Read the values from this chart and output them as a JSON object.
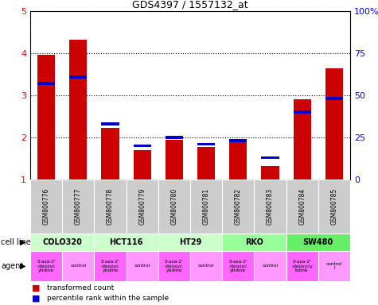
{
  "title": "GDS4397 / 1557132_at",
  "samples": [
    "GSM800776",
    "GSM800777",
    "GSM800778",
    "GSM800779",
    "GSM800780",
    "GSM800781",
    "GSM800782",
    "GSM800783",
    "GSM800784",
    "GSM800785"
  ],
  "transformed_count": [
    3.97,
    4.32,
    2.22,
    1.7,
    1.95,
    1.78,
    1.96,
    1.33,
    2.9,
    3.65
  ],
  "percentile_rank": [
    57,
    61,
    33,
    20,
    25,
    21,
    23,
    13,
    40,
    48
  ],
  "ylim_left": [
    1,
    5
  ],
  "ylim_right": [
    0,
    100
  ],
  "yticks_left": [
    1,
    2,
    3,
    4,
    5
  ],
  "yticks_right": [
    0,
    25,
    50,
    75,
    100
  ],
  "yticklabels_right": [
    "0",
    "25",
    "50",
    "75",
    "100%"
  ],
  "cell_lines": [
    {
      "label": "COLO320",
      "start": 0,
      "end": 2,
      "color": "#ccffcc"
    },
    {
      "label": "HCT116",
      "start": 2,
      "end": 4,
      "color": "#ccffcc"
    },
    {
      "label": "HT29",
      "start": 4,
      "end": 6,
      "color": "#ccffcc"
    },
    {
      "label": "RKO",
      "start": 6,
      "end": 8,
      "color": "#99ff99"
    },
    {
      "label": "SW480",
      "start": 8,
      "end": 10,
      "color": "#66ee66"
    }
  ],
  "agents": [
    {
      "label": "5-aza-2'\n-deoxyc\nytidine",
      "start": 0,
      "end": 1,
      "color": "#ff66ff"
    },
    {
      "label": "control",
      "start": 1,
      "end": 2,
      "color": "#ff99ff"
    },
    {
      "label": "5-aza-2'\n-deoxyc\nytidine",
      "start": 2,
      "end": 3,
      "color": "#ff66ff"
    },
    {
      "label": "control",
      "start": 3,
      "end": 4,
      "color": "#ff99ff"
    },
    {
      "label": "5-aza-2'\n-deoxyc\nytidine",
      "start": 4,
      "end": 5,
      "color": "#ff66ff"
    },
    {
      "label": "control",
      "start": 5,
      "end": 6,
      "color": "#ff99ff"
    },
    {
      "label": "5-aza-2'\n-deoxyc\nytidine",
      "start": 6,
      "end": 7,
      "color": "#ff66ff"
    },
    {
      "label": "control",
      "start": 7,
      "end": 8,
      "color": "#ff99ff"
    },
    {
      "label": "5-aza-2'\n-deoxycy\ntidine",
      "start": 8,
      "end": 9,
      "color": "#ff66ff"
    },
    {
      "label": "control\nl",
      "start": 9,
      "end": 10,
      "color": "#ff99ff"
    }
  ],
  "bar_color_red": "#cc0000",
  "bar_color_blue": "#0000cc",
  "bar_width": 0.55,
  "sample_bg_color": "#cccccc",
  "fig_width": 4.75,
  "fig_height": 3.84,
  "dpi": 100
}
